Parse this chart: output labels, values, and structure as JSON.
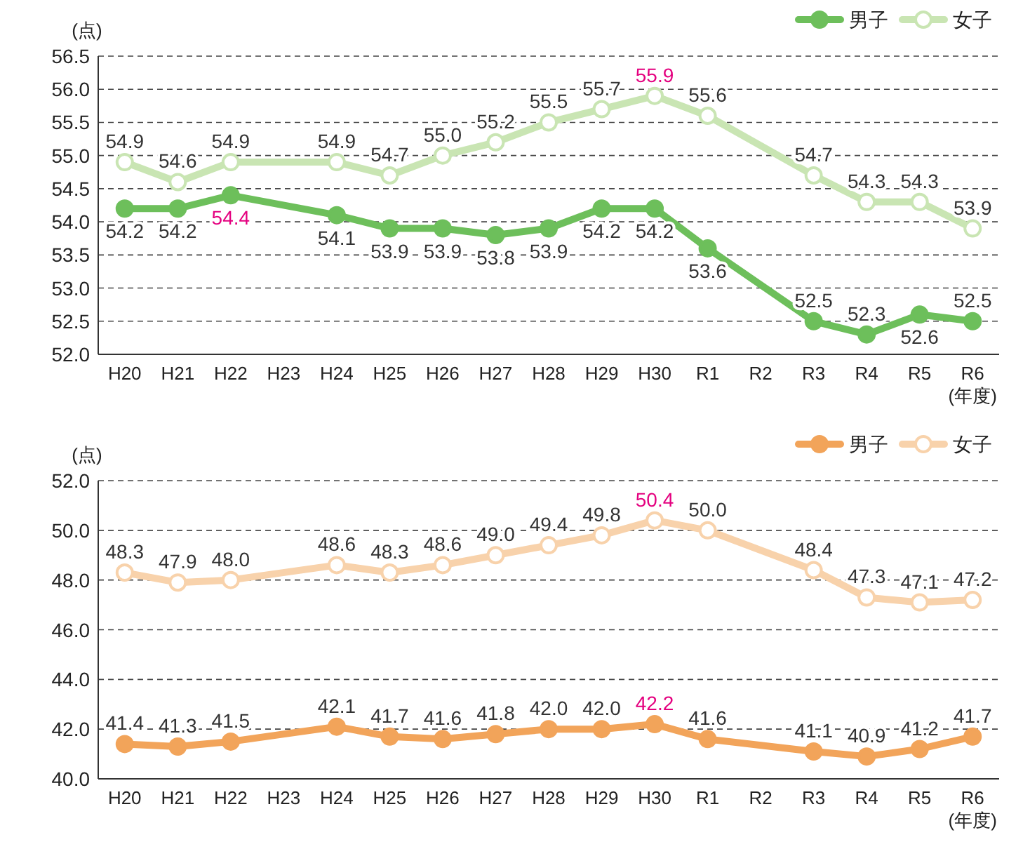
{
  "chart_data": [
    {
      "type": "line",
      "ylabel": "(点)",
      "xlabel": "(年度)",
      "categories": [
        "H20",
        "H21",
        "H22",
        "H23",
        "H24",
        "H25",
        "H26",
        "H27",
        "H28",
        "H29",
        "H30",
        "R1",
        "R2",
        "R3",
        "R4",
        "R5",
        "R6"
      ],
      "series": [
        {
          "name": "男子",
          "color": "#6dbf5b",
          "values": [
            54.2,
            54.2,
            54.4,
            null,
            54.1,
            53.9,
            53.9,
            53.8,
            53.9,
            54.2,
            54.2,
            53.6,
            null,
            52.5,
            52.3,
            52.6,
            52.5
          ],
          "value_labels": [
            "54.2",
            "54.2",
            "54.4",
            null,
            "54.1",
            "53.9",
            "53.9",
            "53.8",
            "53.9",
            "54.2",
            "54.2",
            "53.6",
            null,
            "52.5",
            "52.3",
            "52.6",
            "52.5"
          ]
        },
        {
          "name": "女子",
          "color": "#c9e5b3",
          "values": [
            54.9,
            54.6,
            54.9,
            null,
            54.9,
            54.7,
            55.0,
            55.2,
            55.5,
            55.7,
            55.9,
            55.6,
            null,
            54.7,
            54.3,
            54.3,
            53.9
          ],
          "value_labels": [
            "54.9",
            "54.6",
            "54.9",
            null,
            "54.9",
            "54.7",
            "55.0",
            "55.2",
            "55.5",
            "55.7",
            "55.9",
            "55.6",
            null,
            "54.7",
            "54.3",
            "54.3",
            "53.9"
          ]
        }
      ],
      "ylim": [
        52.0,
        56.5
      ],
      "yticks": [
        {
          "value": 52,
          "label": "52.0"
        },
        {
          "value": 52.5,
          "label": "52.5"
        },
        {
          "value": 53,
          "label": "53.0"
        },
        {
          "value": 53.5,
          "label": "53.5"
        },
        {
          "value": 54,
          "label": "54.0"
        },
        {
          "value": 54.5,
          "label": "54.5"
        },
        {
          "value": 55,
          "label": "55.0"
        },
        {
          "value": 55.5,
          "label": "55.5"
        },
        {
          "value": 56,
          "label": "56.0"
        },
        {
          "value": 56.5,
          "label": "56.5"
        }
      ],
      "grid": "y",
      "legend": "top right",
      "marker": "circle",
      "line_style": "solid"
    },
    {
      "type": "line",
      "ylabel": "(点)",
      "xlabel": "(年度)",
      "categories": [
        "H20",
        "H21",
        "H22",
        "H23",
        "H24",
        "H25",
        "H26",
        "H27",
        "H28",
        "H29",
        "H30",
        "R1",
        "R2",
        "R3",
        "R4",
        "R5",
        "R6"
      ],
      "series": [
        {
          "name": "男子",
          "color": "#f2a45a",
          "values": [
            41.4,
            41.3,
            41.5,
            null,
            42.1,
            41.7,
            41.6,
            41.8,
            42.0,
            42.0,
            42.2,
            41.6,
            null,
            41.1,
            40.9,
            41.2,
            41.7
          ],
          "value_labels": [
            "41.4",
            "41.3",
            "41.5",
            null,
            "42.1",
            "41.7",
            "41.6",
            "41.8",
            "42.0",
            "42.0",
            "42.2",
            "41.6",
            null,
            "41.1",
            "40.9",
            "41.2",
            "41.7"
          ]
        },
        {
          "name": "女子",
          "color": "#f8d2ab",
          "values": [
            48.3,
            47.9,
            48.0,
            null,
            48.6,
            48.3,
            48.6,
            49.0,
            49.4,
            49.8,
            50.4,
            50.0,
            null,
            48.4,
            47.3,
            47.1,
            47.2
          ],
          "value_labels": [
            "48.3",
            "47.9",
            "48.0",
            null,
            "48.6",
            "48.3",
            "48.6",
            "49.0",
            "49.4",
            "49.8",
            "50.4",
            "50.0",
            null,
            "48.4",
            "47.3",
            "47.1",
            "47.2"
          ]
        }
      ],
      "ylim": [
        40.0,
        52.0
      ],
      "yticks": [
        {
          "value": 40,
          "label": "40.0"
        },
        {
          "value": 42,
          "label": "42.0"
        },
        {
          "value": 44,
          "label": "44.0"
        },
        {
          "value": 46,
          "label": "46.0"
        },
        {
          "value": 48,
          "label": "48.0"
        },
        {
          "value": 50,
          "label": "50.0"
        },
        {
          "value": 52,
          "label": "52.0"
        }
      ],
      "grid": "y",
      "legend": "top right",
      "marker": "circle",
      "line_style": "solid"
    }
  ]
}
